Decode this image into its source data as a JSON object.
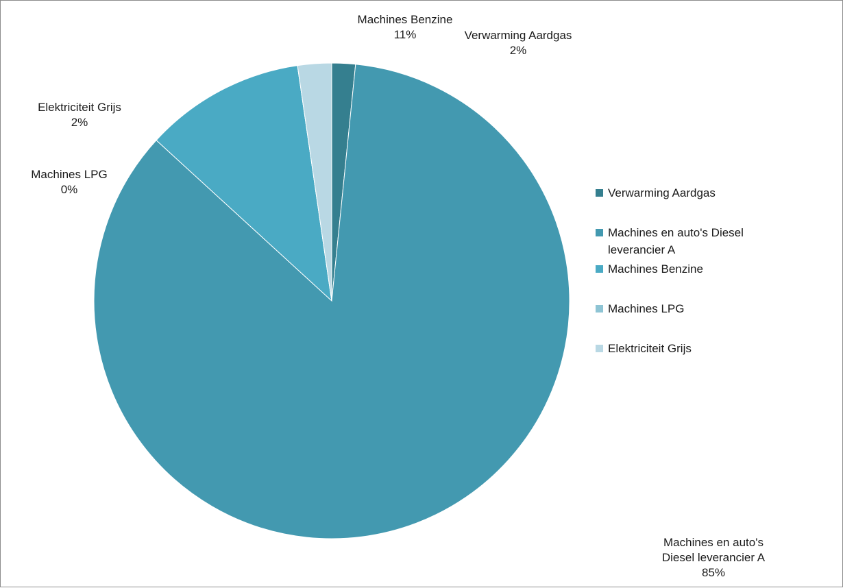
{
  "chart_data": {
    "type": "pie",
    "title": "",
    "categories": [
      "Verwarming Aardgas",
      "Machines en auto's Diesel leverancier A",
      "Machines Benzine",
      "Machines LPG",
      "Elektriciteit Grijs"
    ],
    "values": [
      1.6,
      85.2,
      10.9,
      0.0,
      2.3
    ],
    "data_labels": [
      {
        "name": "Verwarming Aardgas",
        "pct": "2%"
      },
      {
        "name": "Machines en auto's Diesel leverancier A",
        "pct": "85%"
      },
      {
        "name": "Machines Benzine",
        "pct": "11%"
      },
      {
        "name": "Machines LPG",
        "pct": "0%"
      },
      {
        "name": "Elektriciteit Grijs",
        "pct": "2%"
      }
    ],
    "colors": [
      "#357f8f",
      "#4399b0",
      "#4aaac4",
      "#8ec4d4",
      "#b9d8e4"
    ],
    "legend": {
      "position": "right",
      "entries": [
        "Verwarming Aardgas",
        "Machines en auto's Diesel leverancier A",
        "Machines Benzine",
        "Machines LPG",
        "Elektriciteit Grijs"
      ]
    }
  }
}
